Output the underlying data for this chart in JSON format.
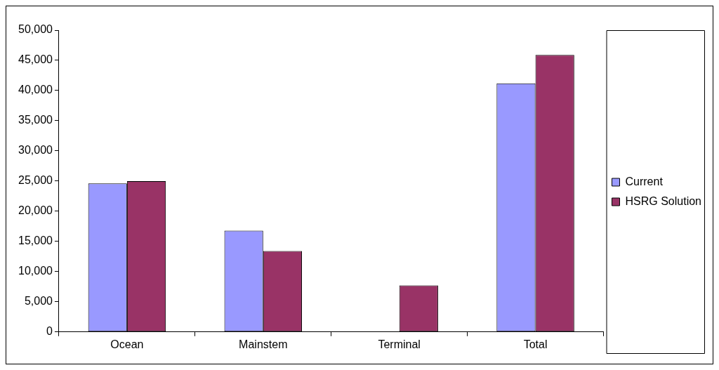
{
  "chart_data": {
    "type": "bar",
    "categories": [
      "Ocean",
      "Mainstem",
      "Terminal",
      "Total"
    ],
    "series": [
      {
        "name": "Current",
        "color": "#9999ff",
        "values": [
          24600,
          16800,
          0,
          41200
        ]
      },
      {
        "name": "HSRG Solution",
        "color": "#993366",
        "values": [
          25000,
          13400,
          7700,
          45900
        ]
      }
    ],
    "ylim": [
      0,
      50000
    ],
    "yticks": [
      {
        "value": 0,
        "label": "0"
      },
      {
        "value": 5000,
        "label": "5,000"
      },
      {
        "value": 10000,
        "label": "10,000"
      },
      {
        "value": 15000,
        "label": "15,000"
      },
      {
        "value": 20000,
        "label": "20,000"
      },
      {
        "value": 25000,
        "label": "25,000"
      },
      {
        "value": 30000,
        "label": "30,000"
      },
      {
        "value": 35000,
        "label": "35,000"
      },
      {
        "value": 40000,
        "label": "40,000"
      },
      {
        "value": 45000,
        "label": "45,000"
      },
      {
        "value": 50000,
        "label": "50,000"
      }
    ],
    "grid": false,
    "legend": "right"
  }
}
